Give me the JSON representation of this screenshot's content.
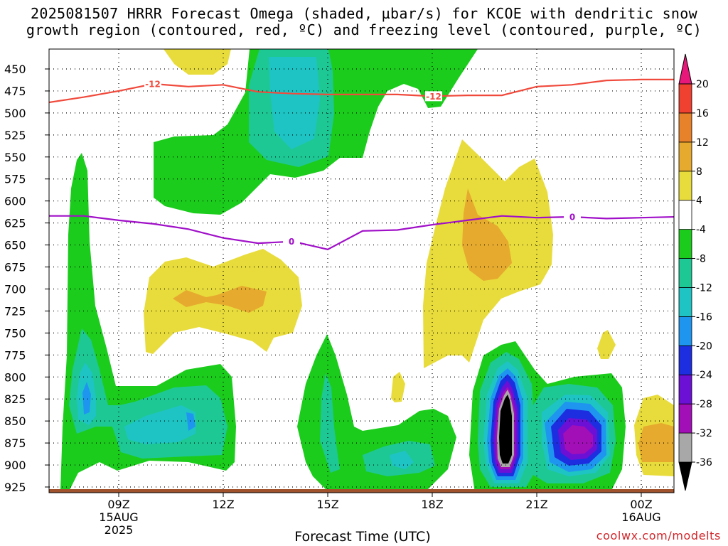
{
  "header": {
    "title_line1": "2025081507 HRRR Forecast Omega (shaded, µbar/s) for KCOE with dendritic snow",
    "title_line2": "growth region (contoured, red, ºC) and freezing level (contoured, purple, ºC)"
  },
  "footer": {
    "xlabel": "Forecast Time (UTC)",
    "credit": "coolwx.com/modelts"
  },
  "chart_data": {
    "type": "contour",
    "title": "2025081507 HRRR Forecast Omega (shaded, µbar/s) for KCOE with dendritic snow growth region (contoured, red, ºC) and freezing level (contoured, purple, ºC)",
    "xlabel": "Forecast Time (UTC)",
    "ylabel": "",
    "y_axis": {
      "reversed": true,
      "ticks": [
        450,
        475,
        500,
        525,
        550,
        575,
        600,
        625,
        650,
        675,
        700,
        725,
        750,
        775,
        800,
        825,
        850,
        875,
        900,
        925
      ]
    },
    "x_axis": {
      "range_hours_utc": [
        "2025-08-15T07:00Z",
        "2025-08-16T01:00Z"
      ],
      "ticks": [
        {
          "time": "2025-08-15T09:00Z",
          "label": "09Z",
          "sub1": "15AUG",
          "sub2": "2025"
        },
        {
          "time": "2025-08-15T12:00Z",
          "label": "12Z",
          "sub1": "",
          "sub2": ""
        },
        {
          "time": "2025-08-15T15:00Z",
          "label": "15Z",
          "sub1": "",
          "sub2": ""
        },
        {
          "time": "2025-08-15T18:00Z",
          "label": "18Z",
          "sub1": "",
          "sub2": ""
        },
        {
          "time": "2025-08-15T21:00Z",
          "label": "21Z",
          "sub1": "",
          "sub2": ""
        },
        {
          "time": "2025-08-16T00:00Z",
          "label": "00Z",
          "sub1": "16AUG",
          "sub2": ""
        }
      ]
    },
    "grid": true,
    "colorbar": {
      "unit": "µbar/s",
      "levels": [
        -36,
        -32,
        -28,
        -24,
        -20,
        -16,
        -12,
        -8,
        -4,
        4,
        8,
        12,
        16,
        20
      ],
      "colors": [
        "#000000",
        "#a8a8a8",
        "#a20fb6",
        "#6c10d6",
        "#1c2ee0",
        "#1e96f0",
        "#1ec4c4",
        "#1ec894",
        "#1ccc1c",
        "#ffffff",
        "#e8dc3c",
        "#e6aa2e",
        "#e8822a",
        "#f04030",
        "#e8187a"
      ]
    },
    "contours": [
      {
        "name": "-12",
        "color": "#f04a3c",
        "labels": [
          "-12",
          "-12"
        ],
        "points": [
          [
            "2025-08-15T07:00Z",
            488
          ],
          [
            "2025-08-15T08:00Z",
            482
          ],
          [
            "2025-08-15T09:00Z",
            475
          ],
          [
            "2025-08-15T10:00Z",
            467
          ],
          [
            "2025-08-15T11:00Z",
            470
          ],
          [
            "2025-08-15T12:00Z",
            468
          ],
          [
            "2025-08-15T13:00Z",
            476
          ],
          [
            "2025-08-15T14:00Z",
            478
          ],
          [
            "2025-08-15T15:00Z",
            479
          ],
          [
            "2025-08-15T16:00Z",
            479
          ],
          [
            "2025-08-15T17:00Z",
            479
          ],
          [
            "2025-08-15T18:00Z",
            481
          ],
          [
            "2025-08-15T19:00Z",
            480
          ],
          [
            "2025-08-15T20:00Z",
            480
          ],
          [
            "2025-08-15T21:00Z",
            470
          ],
          [
            "2025-08-15T22:00Z",
            468
          ],
          [
            "2025-08-15T23:00Z",
            463
          ],
          [
            "2025-08-16T00:00Z",
            462
          ],
          [
            "2025-08-16T01:00Z",
            462
          ]
        ]
      },
      {
        "name": "0",
        "color": "#a010c8",
        "labels": [
          "0",
          "0"
        ],
        "points": [
          [
            "2025-08-15T07:00Z",
            617
          ],
          [
            "2025-08-15T08:00Z",
            617
          ],
          [
            "2025-08-15T09:00Z",
            622
          ],
          [
            "2025-08-15T10:00Z",
            626
          ],
          [
            "2025-08-15T11:00Z",
            632
          ],
          [
            "2025-08-15T12:00Z",
            642
          ],
          [
            "2025-08-15T13:00Z",
            648
          ],
          [
            "2025-08-15T14:00Z",
            646
          ],
          [
            "2025-08-15T15:00Z",
            655
          ],
          [
            "2025-08-15T16:00Z",
            634
          ],
          [
            "2025-08-15T17:00Z",
            633
          ],
          [
            "2025-08-15T18:00Z",
            627
          ],
          [
            "2025-08-15T19:00Z",
            622
          ],
          [
            "2025-08-15T20:00Z",
            617
          ],
          [
            "2025-08-15T21:00Z",
            619
          ],
          [
            "2025-08-15T22:00Z",
            618
          ],
          [
            "2025-08-15T23:00Z",
            620
          ],
          [
            "2025-08-16T00:00Z",
            619
          ],
          [
            "2025-08-16T01:00Z",
            618
          ]
        ]
      }
    ]
  }
}
